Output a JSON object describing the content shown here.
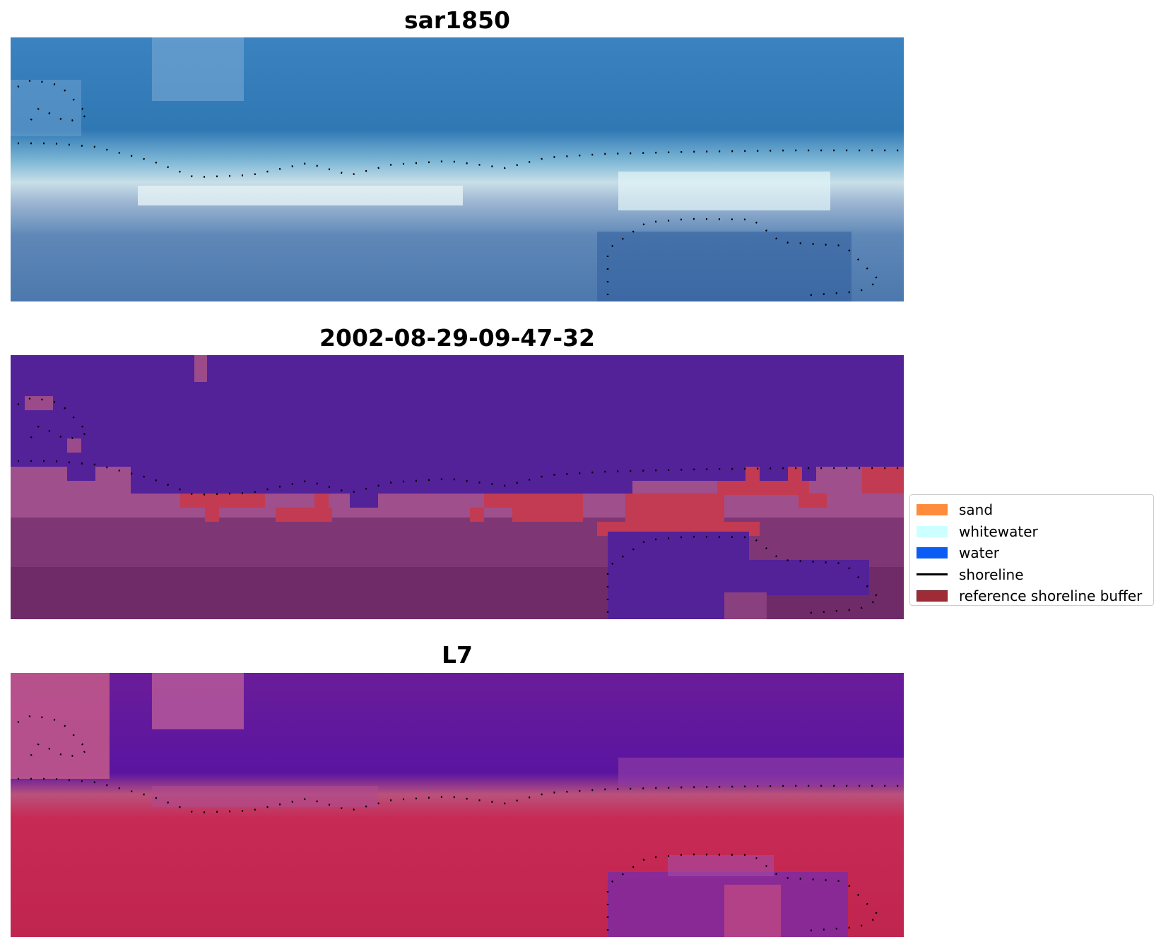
{
  "panels": [
    {
      "title": "sar1850"
    },
    {
      "title": "2002-08-29-09-47-32"
    },
    {
      "title": "L7"
    }
  ],
  "legend": {
    "items": [
      {
        "label": "sand",
        "color": "#ff8c3c"
      },
      {
        "label": "whitewater",
        "color": "#ccffff"
      },
      {
        "label": "water",
        "color": "#0b5cf5"
      },
      {
        "label": "shoreline",
        "color": "#000000"
      },
      {
        "label": "reference shoreline buffer",
        "color": "#9e2b35"
      }
    ]
  }
}
